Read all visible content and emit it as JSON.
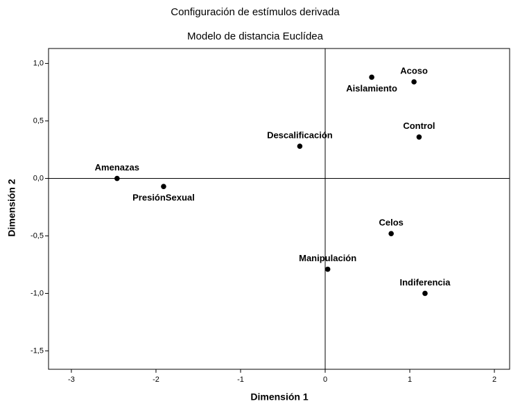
{
  "chart_data": {
    "type": "scatter",
    "title": "Configuración de estímulos derivada",
    "subtitle": "Modelo de distancia Euclídea",
    "x_label": "Dimensión 1",
    "y_label": "Dimensión 2",
    "labels": [
      "Aislamiento",
      "Acoso",
      "Control",
      "Descalificación",
      "Amenazas",
      "PresiónSexual",
      "Celos",
      "Manipulación",
      "Indiferencia"
    ],
    "x": [
      0.55,
      1.05,
      1.11,
      -0.3,
      -2.46,
      -1.91,
      0.78,
      0.03,
      1.18
    ],
    "y": [
      0.88,
      0.84,
      0.36,
      0.28,
      0.0,
      -0.07,
      -0.48,
      -0.79,
      -1.0
    ],
    "color": "#000000",
    "xlim": [
      -3.27,
      2.18
    ],
    "ylim": [
      -1.66,
      1.13
    ],
    "xticks": [
      -3,
      -2,
      -1,
      0,
      1,
      2
    ],
    "yticks": [
      {
        "value": 1.0,
        "label": "1,0"
      },
      {
        "value": 0.5,
        "label": "0,5"
      },
      {
        "value": 0.0,
        "label": "0,0"
      },
      {
        "value": -0.5,
        "label": "-0,5"
      },
      {
        "value": -1.0,
        "label": "-1,0"
      },
      {
        "value": -1.5,
        "label": "-1,5"
      }
    ],
    "reference_lines": true
  }
}
